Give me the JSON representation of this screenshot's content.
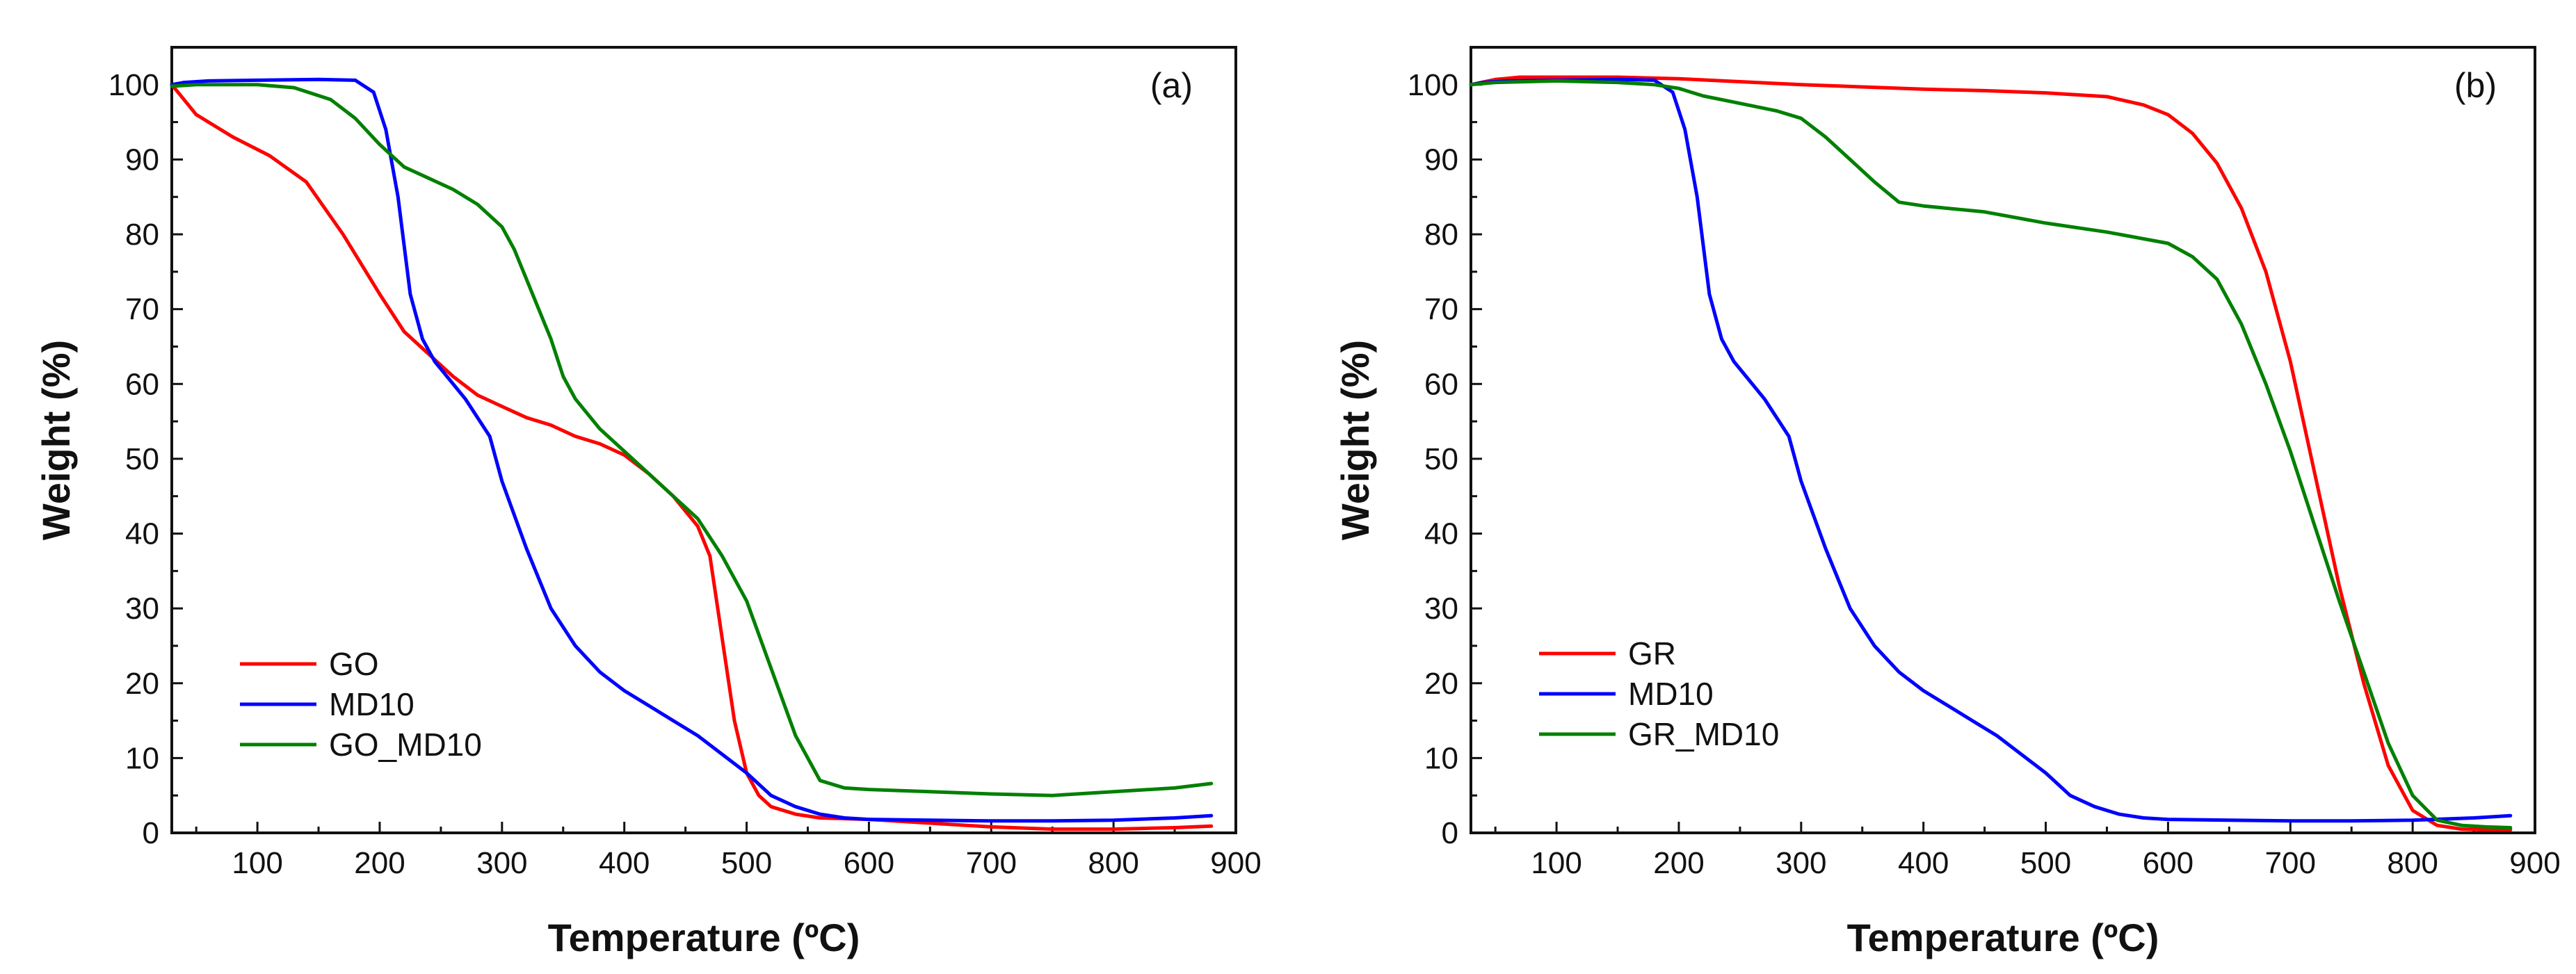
{
  "chart_data": [
    {
      "type": "line",
      "panel_label": "(a)",
      "xlabel": "Temperature (ºC)",
      "ylabel": "Weight (%)",
      "xlim": [
        30,
        900
      ],
      "ylim": [
        0,
        105
      ],
      "xticks": [
        "100",
        "200",
        "300",
        "400",
        "500",
        "600",
        "700",
        "800",
        "900"
      ],
      "yticks": [
        "0",
        "10",
        "20",
        "30",
        "40",
        "50",
        "60",
        "70",
        "80",
        "90",
        "100"
      ],
      "legend_position": "lower-left",
      "series": [
        {
          "name": "GO",
          "color": "#ff0000",
          "x": [
            30,
            40,
            50,
            80,
            110,
            140,
            170,
            200,
            220,
            240,
            260,
            280,
            300,
            320,
            340,
            360,
            380,
            400,
            420,
            440,
            460,
            470,
            480,
            490,
            500,
            510,
            520,
            540,
            560,
            600,
            650,
            700,
            750,
            800,
            850,
            880
          ],
          "y": [
            100,
            98,
            96,
            93,
            90.5,
            87,
            80,
            72,
            67,
            64,
            61,
            58.5,
            57,
            55.5,
            54.5,
            53,
            52,
            50.5,
            48,
            45,
            41,
            37,
            26,
            15,
            8,
            5,
            3.5,
            2.5,
            2,
            1.8,
            1.3,
            0.8,
            0.5,
            0.5,
            0.7,
            0.9
          ]
        },
        {
          "name": "MD10",
          "color": "#0000ff",
          "x": [
            30,
            40,
            60,
            100,
            150,
            180,
            195,
            205,
            215,
            225,
            235,
            245,
            255,
            270,
            290,
            300,
            320,
            340,
            360,
            380,
            400,
            420,
            440,
            460,
            480,
            500,
            520,
            540,
            560,
            580,
            600,
            650,
            700,
            750,
            800,
            850,
            880
          ],
          "y": [
            100,
            100.3,
            100.5,
            100.6,
            100.7,
            100.6,
            99,
            94,
            85,
            72,
            66,
            63,
            61,
            58,
            53,
            47,
            38,
            30,
            25,
            21.5,
            19,
            17,
            15,
            13,
            10.5,
            8,
            5,
            3.5,
            2.5,
            2,
            1.8,
            1.7,
            1.6,
            1.6,
            1.7,
            2,
            2.3
          ]
        },
        {
          "name": "GO_MD10",
          "color": "#008000",
          "x": [
            30,
            50,
            100,
            130,
            160,
            180,
            200,
            220,
            240,
            260,
            280,
            300,
            310,
            320,
            330,
            340,
            350,
            360,
            380,
            400,
            420,
            440,
            460,
            480,
            500,
            520,
            540,
            560,
            580,
            600,
            650,
            700,
            750,
            800,
            850,
            880
          ],
          "y": [
            99.8,
            100,
            100,
            99.6,
            98,
            95.5,
            92,
            89,
            87.5,
            86,
            84,
            81,
            78,
            74,
            70,
            66,
            61,
            58,
            54,
            51,
            48,
            45,
            42,
            37,
            31,
            22,
            13,
            7,
            6,
            5.8,
            5.5,
            5.2,
            5,
            5.5,
            6,
            6.6
          ]
        }
      ]
    },
    {
      "type": "line",
      "panel_label": "(b)",
      "xlabel": "Temperature (ºC)",
      "ylabel": "Weight (%)",
      "xlim": [
        30,
        900
      ],
      "ylim": [
        0,
        105
      ],
      "xticks": [
        "100",
        "200",
        "300",
        "400",
        "500",
        "600",
        "700",
        "800",
        "900"
      ],
      "yticks": [
        "0",
        "10",
        "20",
        "30",
        "40",
        "50",
        "60",
        "70",
        "80",
        "90",
        "100"
      ],
      "legend_position": "lower-left",
      "series": [
        {
          "name": "GR",
          "color": "#ff0000",
          "x": [
            30,
            50,
            70,
            100,
            150,
            200,
            250,
            300,
            350,
            400,
            450,
            500,
            550,
            580,
            600,
            620,
            640,
            660,
            680,
            700,
            720,
            740,
            760,
            780,
            800,
            820,
            840,
            860,
            880
          ],
          "y": [
            100,
            100.7,
            101,
            101,
            101,
            100.8,
            100.4,
            100,
            99.7,
            99.4,
            99.2,
            98.9,
            98.4,
            97.3,
            96,
            93.5,
            89.5,
            83.5,
            75,
            63,
            48,
            33,
            20,
            9,
            3,
            1,
            0.5,
            0.4,
            0.4
          ]
        },
        {
          "name": "MD10",
          "color": "#0000ff",
          "x": [
            30,
            40,
            60,
            100,
            150,
            180,
            195,
            205,
            215,
            225,
            235,
            245,
            255,
            270,
            290,
            300,
            320,
            340,
            360,
            380,
            400,
            420,
            440,
            460,
            480,
            500,
            520,
            540,
            560,
            580,
            600,
            650,
            700,
            750,
            800,
            850,
            880
          ],
          "y": [
            100,
            100.3,
            100.5,
            100.6,
            100.7,
            100.6,
            99,
            94,
            85,
            72,
            66,
            63,
            61,
            58,
            53,
            47,
            38,
            30,
            25,
            21.5,
            19,
            17,
            15,
            13,
            10.5,
            8,
            5,
            3.5,
            2.5,
            2,
            1.8,
            1.7,
            1.6,
            1.6,
            1.7,
            2,
            2.3
          ]
        },
        {
          "name": "GR_MD10",
          "color": "#008000",
          "x": [
            30,
            50,
            100,
            150,
            180,
            200,
            220,
            250,
            280,
            300,
            320,
            340,
            360,
            380,
            400,
            450,
            500,
            550,
            600,
            620,
            640,
            660,
            680,
            700,
            720,
            740,
            760,
            780,
            800,
            820,
            840,
            860,
            880
          ],
          "y": [
            100,
            100.3,
            100.5,
            100.3,
            100,
            99.5,
            98.5,
            97.5,
            96.5,
            95.5,
            93,
            90,
            87,
            84.3,
            83.8,
            83,
            81.5,
            80.3,
            78.8,
            77,
            74,
            68,
            60,
            51,
            41,
            31,
            21.5,
            12,
            5,
            1.7,
            1,
            0.8,
            0.7
          ]
        }
      ]
    }
  ]
}
